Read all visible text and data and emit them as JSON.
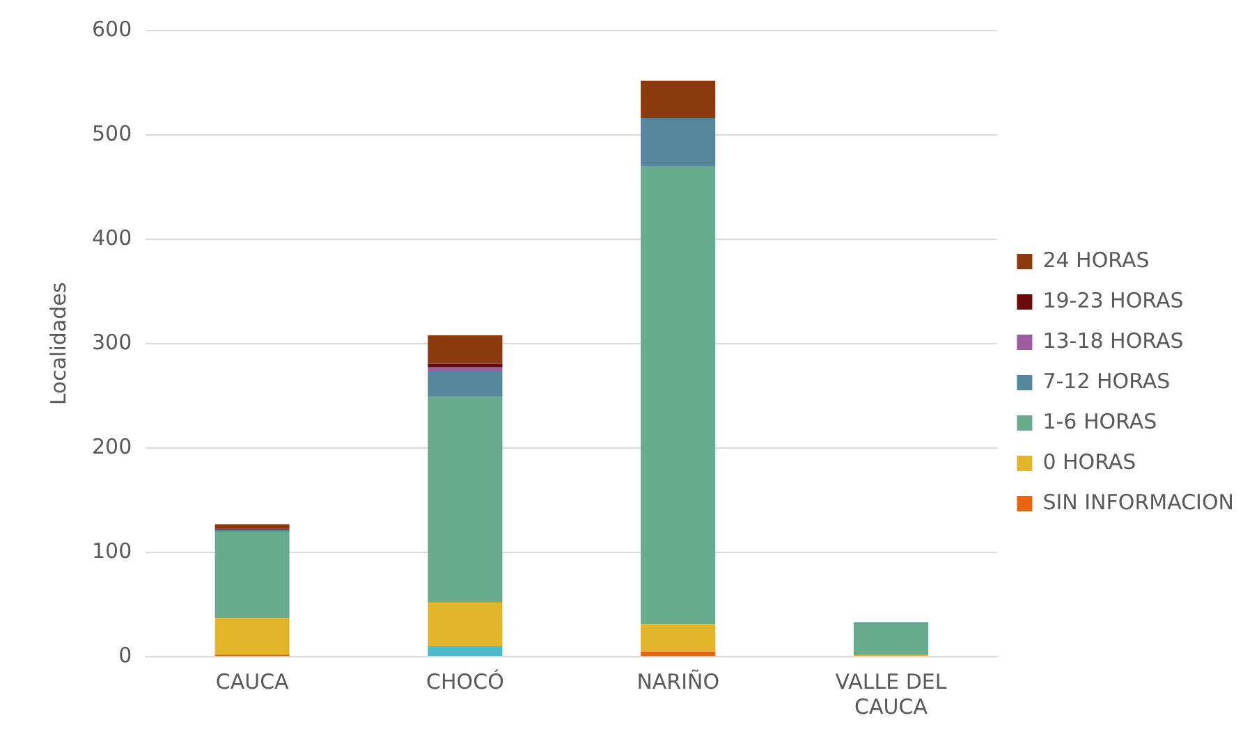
{
  "chart_data": {
    "type": "bar",
    "stacked": true,
    "ylabel": "Localidades",
    "categories": [
      "CAUCA",
      "CHOCÓ",
      "NARIÑO",
      "VALLE DEL CAUCA"
    ],
    "ylim": [
      0,
      600
    ],
    "yticks": [
      0,
      100,
      200,
      300,
      400,
      500,
      600
    ],
    "grid": "y",
    "legend": "right",
    "series": [
      {
        "color": "#4cb8c8",
        "values": [
          0,
          10,
          0,
          0
        ]
      },
      {
        "name": "SIN INFORMACION",
        "color": "#e8650f",
        "values": [
          2,
          0,
          5,
          0
        ]
      },
      {
        "name": "0 HORAS",
        "color": "#e2b42a",
        "values": [
          35,
          42,
          26,
          2
        ]
      },
      {
        "name": "1-6 HORAS",
        "color": "#68ab8e",
        "values": [
          83,
          197,
          439,
          30
        ]
      },
      {
        "name": "7-12 HORAS",
        "color": "#54879c",
        "values": [
          2,
          25,
          46,
          1
        ]
      },
      {
        "name": "13-18 HORAS",
        "color": "#9e5ba0",
        "values": [
          0,
          3,
          0,
          0
        ]
      },
      {
        "name": "19-23 HORAS",
        "color": "#6b0a0a",
        "values": [
          1,
          4,
          0,
          0
        ]
      },
      {
        "name": "24 HORAS",
        "color": "#8b3a0e",
        "values": [
          4,
          27,
          36,
          0
        ]
      }
    ]
  }
}
